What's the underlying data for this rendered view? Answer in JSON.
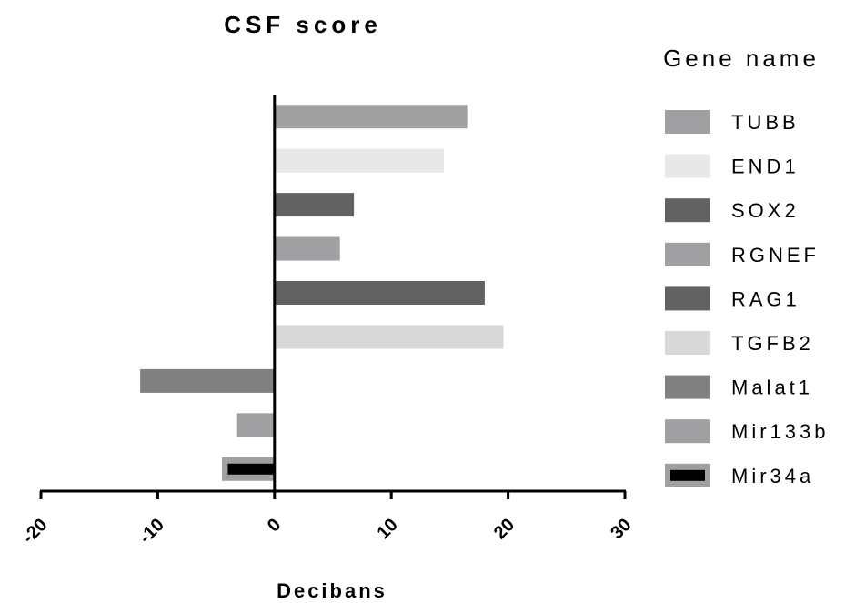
{
  "chart_data": {
    "type": "bar",
    "orientation": "horizontal",
    "title": "CSF score",
    "xlabel": "Decibans",
    "ylabel": "",
    "xlim": [
      -20,
      30
    ],
    "xticks": [
      -20,
      -10,
      0,
      10,
      20,
      30
    ],
    "xtick_labels": [
      "-20",
      "-10",
      "0",
      "10",
      "20",
      "30"
    ],
    "legend_title": "Gene name",
    "legend_position": "right",
    "grid": false,
    "categories": [
      "TUBB",
      "END1",
      "SOX2",
      "RGNEF",
      "RAG1",
      "TGFB2",
      "Malat1",
      "Mir133b",
      "Mir34a"
    ],
    "values": [
      16.5,
      14.5,
      6.8,
      5.6,
      18.0,
      19.6,
      -11.5,
      -3.2,
      -4.5
    ],
    "inner_bar": {
      "category": "Mir34a",
      "value": -4.0,
      "color": "#000000"
    },
    "colors": [
      "#a0a0a2",
      "#e8e8e8",
      "#626262",
      "#a0a0a2",
      "#626262",
      "#d8d8d8",
      "#808080",
      "#a0a0a2",
      "#a0a0a2"
    ]
  }
}
